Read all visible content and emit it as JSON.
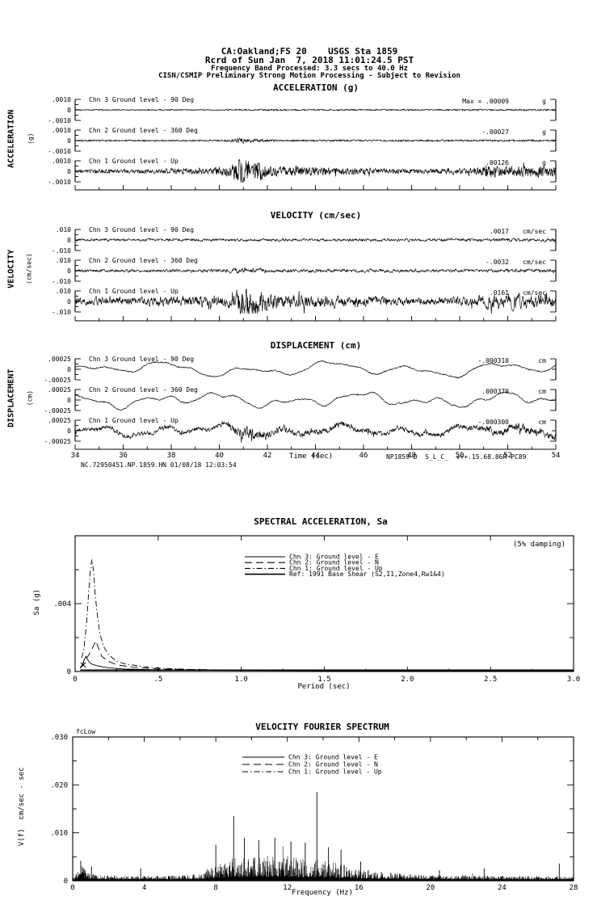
{
  "header": {
    "line1": "CA:Oakland;FS 20    USGS Sta 1859",
    "line2": "Rcrd of Sun Jan  7, 2018 11:01:24.5 PST",
    "line3": "Frequency Band Processed: 3.3 secs to 40.0 Hz",
    "line4": "CISN/CSMIP Preliminary Strong Motion Processing - Subject to Revision"
  },
  "timeseries": {
    "xlabel": "Time (sec)",
    "x_ticks": [
      "34",
      "36",
      "38",
      "40",
      "42",
      "44",
      "46",
      "48",
      "50",
      "52",
      "54"
    ],
    "footer_left": "NC.72950451.NP.1859.HN 01/08/18 12:03:54",
    "footer_right": "NP1859-D  S_L_C_  v++.15.68.86R PC89",
    "groups": [
      {
        "title": "ACCELERATION (g)",
        "side": "ACCELERATION",
        "side_unit": "(g)",
        "y_top": ".0010",
        "y_zero": "0",
        "y_bot": "-.0010",
        "unit": "g",
        "channels": [
          {
            "label": "Chn 3  Ground level - 90 Deg",
            "max_label": "Max =    .00009",
            "unit": "g"
          },
          {
            "label": "Chn 2  Ground level - 360 Deg",
            "max_label": "-.00027",
            "unit": "g"
          },
          {
            "label": "Chn 1  Ground level - Up",
            "max_label": ".00126",
            "unit": "g"
          }
        ]
      },
      {
        "title": "VELOCITY (cm/sec)",
        "side": "VELOCITY",
        "side_unit": "(cm/sec)",
        "y_top": ".010",
        "y_zero": "0",
        "y_bot": "-.010",
        "unit": "cm/sec",
        "channels": [
          {
            "label": "Chn 3  Ground level - 90 Deg",
            "max_label": ".0017",
            "unit": "cm/sec"
          },
          {
            "label": "Chn 2  Ground level - 360 Deg",
            "max_label": "-.0032",
            "unit": "cm/sec"
          },
          {
            "label": "Chn 1  Ground level - Up",
            "max_label": ".0161",
            "unit": "cm/sec"
          }
        ]
      },
      {
        "title": "DISPLACEMENT (cm)",
        "side": "DISPLACEMENT",
        "side_unit": "(cm)",
        "y_top": ".00025",
        "y_zero": "0",
        "y_bot": "-.00025",
        "unit": "cm",
        "channels": [
          {
            "label": "Chn 3  Ground level - 90 Deg",
            "max_label": "-.000310",
            "unit": "cm"
          },
          {
            "label": "Chn 2  Ground level - 360 Deg",
            "max_label": ".000370",
            "unit": "cm"
          },
          {
            "label": "Chn 1  Ground level - Up",
            "max_label": "-.000300",
            "unit": "cm"
          }
        ]
      }
    ]
  },
  "sa": {
    "title": "SPECTRAL ACCELERATION, Sa",
    "damping": "(5% damping)",
    "ylabel": "Sa (g)",
    "xlabel": "Period (sec)",
    "x_ticks": [
      "0",
      ".5",
      "1.0",
      "1.5",
      "2.0",
      "2.5",
      "3.0"
    ],
    "y_tick_labels": [
      "0",
      ".004"
    ],
    "legend": [
      {
        "label": "Chn 3: Ground level - E",
        "style": "solid"
      },
      {
        "label": "Chn 2: Ground level - N",
        "style": "dash"
      },
      {
        "label": "Chn 1: Ground level - Up",
        "style": "dashdot"
      },
      {
        "label": "Ref: 1991 Base Shear (S2,I1,Zone4,Rw1&4)",
        "style": "solid-thick"
      }
    ]
  },
  "fourier": {
    "title": "VELOCITY FOURIER SPECTRUM",
    "corner_note": "fcLow",
    "ylabel": "V(f)  cm/sec - sec",
    "xlabel": "Frequency (Hz)",
    "x_ticks": [
      "0",
      "4",
      "8",
      "12",
      "16",
      "20",
      "24",
      "28"
    ],
    "y_ticks": [
      "0",
      ".010",
      ".020",
      ".030"
    ],
    "legend": [
      {
        "label": "Chn 3: Ground level - E",
        "style": "solid"
      },
      {
        "label": "Chn 2: Ground level - N",
        "style": "dash"
      },
      {
        "label": "Chn 1: Ground level - Up",
        "style": "dashdot"
      }
    ]
  },
  "chart_data": [
    {
      "id": "acceleration",
      "type": "line",
      "title": "ACCELERATION (g)",
      "xlabel": "Time (sec)",
      "xlim": [
        34,
        54
      ],
      "units": "g",
      "ylim_per_channel": [
        -0.001,
        0.001
      ],
      "half_scale": 0.001,
      "series": [
        {
          "name": "Chn 3  Ground level - 90 Deg",
          "peak": 9e-05,
          "seed": 1,
          "smooth": 0.2,
          "envelope": [
            [
              34,
              5e-05
            ],
            [
              40,
              5e-05
            ],
            [
              41,
              7e-05
            ],
            [
              44,
              6e-05
            ],
            [
              54,
              7e-05
            ]
          ]
        },
        {
          "name": "Chn 2  Ground level - 360 Deg",
          "peak": -0.00027,
          "seed": 2,
          "smooth": 0.2,
          "envelope": [
            [
              34,
              6e-05
            ],
            [
              40.3,
              7e-05
            ],
            [
              40.8,
              0.00022
            ],
            [
              41.6,
              0.00012
            ],
            [
              43,
              7e-05
            ],
            [
              51,
              8e-05
            ],
            [
              54,
              8e-05
            ]
          ]
        },
        {
          "name": "Chn 1  Ground level - Up",
          "peak": 0.00126,
          "seed": 3,
          "smooth": 0.15,
          "envelope": [
            [
              34,
              0.00015
            ],
            [
              37,
              0.00018
            ],
            [
              38.5,
              0.0003
            ],
            [
              39.5,
              0.00025
            ],
            [
              40.4,
              0.00045
            ],
            [
              40.9,
              0.0011
            ],
            [
              41.5,
              0.0009
            ],
            [
              42.2,
              0.00045
            ],
            [
              43.5,
              0.0004
            ],
            [
              45,
              0.0003
            ],
            [
              47,
              0.00022
            ],
            [
              49,
              0.0002
            ],
            [
              50.5,
              0.00028
            ],
            [
              51.5,
              0.0005
            ],
            [
              52.5,
              0.00045
            ],
            [
              53.5,
              0.0005
            ],
            [
              54,
              0.0004
            ]
          ]
        }
      ]
    },
    {
      "id": "velocity",
      "type": "line",
      "title": "VELOCITY (cm/sec)",
      "xlabel": "Time (sec)",
      "xlim": [
        34,
        54
      ],
      "units": "cm/sec",
      "ylim_per_channel": [
        -0.01,
        0.01
      ],
      "half_scale": 0.01,
      "series": [
        {
          "name": "Chn 3  Ground level - 90 Deg",
          "peak": 0.0017,
          "seed": 4,
          "smooth": 0.5,
          "envelope": [
            [
              34,
              0.001
            ],
            [
              44,
              0.0011
            ],
            [
              54,
              0.0013
            ]
          ]
        },
        {
          "name": "Chn 2  Ground level - 360 Deg",
          "peak": -0.0032,
          "seed": 5,
          "smooth": 0.5,
          "envelope": [
            [
              34,
              0.0012
            ],
            [
              40.3,
              0.0013
            ],
            [
              40.9,
              0.0028
            ],
            [
              41.8,
              0.0016
            ],
            [
              43,
              0.0013
            ],
            [
              50,
              0.0013
            ],
            [
              54,
              0.0015
            ]
          ]
        },
        {
          "name": "Chn 1  Ground level - Up",
          "peak": 0.0161,
          "seed": 6,
          "smooth": 0.45,
          "envelope": [
            [
              34,
              0.003
            ],
            [
              37,
              0.0032
            ],
            [
              38.5,
              0.0045
            ],
            [
              40,
              0.004
            ],
            [
              40.6,
              0.006
            ],
            [
              41,
              0.014
            ],
            [
              41.6,
              0.011
            ],
            [
              42.3,
              0.006
            ],
            [
              43.5,
              0.0055
            ],
            [
              45,
              0.0045
            ],
            [
              47,
              0.0035
            ],
            [
              49,
              0.003
            ],
            [
              50.5,
              0.004
            ],
            [
              51.5,
              0.0065
            ],
            [
              52.5,
              0.0055
            ],
            [
              53.5,
              0.006
            ],
            [
              54,
              0.005
            ]
          ]
        }
      ]
    },
    {
      "id": "displacement",
      "type": "line",
      "title": "DISPLACEMENT (cm)",
      "xlabel": "Time (sec)",
      "xlim": [
        34,
        54
      ],
      "units": "cm",
      "ylim_per_channel": [
        -0.00025,
        0.00025
      ],
      "half_scale": 0.00025,
      "series": [
        {
          "name": "Chn 3  Ground level - 90 Deg",
          "peak": -0.00031,
          "seed": 11,
          "smooth": 0.35,
          "envelope": [
            [
              34,
              1.2e-05
            ],
            [
              54,
              1.2e-05
            ]
          ],
          "components": [
            [
              3.4,
              0.0001,
              0.8
            ],
            [
              1.7,
              4e-05,
              2.1
            ],
            [
              8.0,
              8e-05,
              4.0
            ],
            [
              0.9,
              1.5e-05,
              1.0
            ]
          ]
        },
        {
          "name": "Chn 2  Ground level - 360 Deg",
          "peak": 0.00037,
          "seed": 12,
          "smooth": 0.35,
          "envelope": [
            [
              34,
              1.2e-05
            ],
            [
              54,
              1.2e-05
            ]
          ],
          "components": [
            [
              2.9,
              9e-05,
              2.6
            ],
            [
              1.4,
              5e-05,
              0.4
            ],
            [
              6.6,
              8e-05,
              1.9
            ],
            [
              0.85,
              2e-05,
              3.4
            ]
          ]
        },
        {
          "name": "Chn 1  Ground level - Up",
          "peak": -0.0003,
          "seed": 13,
          "smooth": 0.4,
          "envelope": [
            [
              34,
              4e-05
            ],
            [
              37,
              4.5e-05
            ],
            [
              40.3,
              5e-05
            ],
            [
              40.9,
              0.00016
            ],
            [
              41.8,
              9e-05
            ],
            [
              43,
              6e-05
            ],
            [
              46,
              5.5e-05
            ],
            [
              49,
              5e-05
            ],
            [
              51,
              7e-05
            ],
            [
              52.5,
              8e-05
            ],
            [
              54,
              7e-05
            ]
          ],
          "components": [
            [
              2.5,
              7e-05,
              1.2
            ],
            [
              1.2,
              4e-05,
              4.4
            ],
            [
              5.8,
              6e-05,
              2.8
            ]
          ]
        }
      ]
    },
    {
      "id": "spectral_acceleration",
      "type": "line",
      "title": "SPECTRAL ACCELERATION, Sa",
      "xlabel": "Period (sec)",
      "ylabel": "Sa (g)",
      "xlim": [
        0,
        3
      ],
      "ylim": [
        0,
        0.008
      ],
      "damping": "5%",
      "legend_position": "top-center",
      "series": [
        {
          "name": "Chn 3: Ground level - E",
          "style": "solid",
          "points": [
            [
              0.03,
              0.0002
            ],
            [
              0.045,
              0.0004
            ],
            [
              0.055,
              0.0007
            ],
            [
              0.065,
              0.0009
            ],
            [
              0.075,
              0.0007
            ],
            [
              0.09,
              0.0005
            ],
            [
              0.11,
              0.0004
            ],
            [
              0.14,
              0.00032
            ],
            [
              0.2,
              0.00022
            ],
            [
              0.3,
              0.00015
            ],
            [
              0.5,
              0.0001
            ],
            [
              0.8,
              7e-05
            ],
            [
              1.5,
              5e-05
            ],
            [
              3,
              4e-05
            ]
          ]
        },
        {
          "name": "Chn 2: Ground level - N",
          "style": "dash",
          "points": [
            [
              0.03,
              0.0002
            ],
            [
              0.05,
              0.0005
            ],
            [
              0.07,
              0.0008
            ],
            [
              0.09,
              0.0011
            ],
            [
              0.11,
              0.0015
            ],
            [
              0.125,
              0.0018
            ],
            [
              0.14,
              0.0014
            ],
            [
              0.16,
              0.0009
            ],
            [
              0.2,
              0.0006
            ],
            [
              0.25,
              0.0004
            ],
            [
              0.35,
              0.00025
            ],
            [
              0.5,
              0.00015
            ],
            [
              0.8,
              0.0001
            ],
            [
              1.5,
              6e-05
            ],
            [
              3,
              4e-05
            ]
          ]
        },
        {
          "name": "Chn 1: Ground level - Up",
          "style": "dashdot",
          "points": [
            [
              0.04,
              0.0008
            ],
            [
              0.055,
              0.0015
            ],
            [
              0.07,
              0.003
            ],
            [
              0.08,
              0.0045
            ],
            [
              0.09,
              0.0058
            ],
            [
              0.1,
              0.0066
            ],
            [
              0.11,
              0.006
            ],
            [
              0.12,
              0.0046
            ],
            [
              0.135,
              0.0032
            ],
            [
              0.15,
              0.0022
            ],
            [
              0.17,
              0.0015
            ],
            [
              0.2,
              0.001
            ],
            [
              0.25,
              0.0006
            ],
            [
              0.3,
              0.00045
            ],
            [
              0.4,
              0.0003
            ],
            [
              0.5,
              0.0002
            ],
            [
              0.7,
              0.00012
            ],
            [
              1,
              8e-05
            ],
            [
              2,
              5e-05
            ],
            [
              3,
              4e-05
            ]
          ]
        },
        {
          "name": "Ref: 1991 Base Shear (S2,I1,Zone4,Rw1&4)",
          "style": "solid-thick",
          "points": [
            [
              0.03,
              8e-05
            ],
            [
              3,
              8e-05
            ]
          ]
        }
      ]
    },
    {
      "id": "velocity_fourier_spectrum",
      "type": "line",
      "title": "VELOCITY FOURIER SPECTRUM",
      "xlabel": "Frequency (Hz)",
      "ylabel": "V(f) cm/sec - sec",
      "xlim": [
        0,
        28
      ],
      "ylim": [
        0,
        0.03
      ],
      "seed": 9,
      "envelope": [
        [
          0,
          0.0006
        ],
        [
          0.25,
          0.0018
        ],
        [
          0.45,
          0.0035
        ],
        [
          0.7,
          0.0022
        ],
        [
          1.0,
          0.0015
        ],
        [
          1.5,
          0.001
        ],
        [
          2.5,
          0.0008
        ],
        [
          4,
          0.0008
        ],
        [
          6,
          0.0009
        ],
        [
          7,
          0.0012
        ],
        [
          7.8,
          0.003
        ],
        [
          8.5,
          0.0042
        ],
        [
          9.5,
          0.0048
        ],
        [
          11,
          0.005
        ],
        [
          12,
          0.0048
        ],
        [
          13,
          0.0045
        ],
        [
          14,
          0.0042
        ],
        [
          15,
          0.0035
        ],
        [
          16,
          0.0025
        ],
        [
          17,
          0.0018
        ],
        [
          18,
          0.0014
        ],
        [
          19,
          0.0012
        ],
        [
          20,
          0.001
        ],
        [
          22,
          0.0009
        ],
        [
          24,
          0.0008
        ],
        [
          26,
          0.0008
        ],
        [
          28,
          0.0007
        ]
      ],
      "peaks": [
        [
          0.45,
          0.0042
        ],
        [
          1.05,
          0.003
        ],
        [
          3.8,
          0.0026
        ],
        [
          8.0,
          0.0075
        ],
        [
          9.0,
          0.0135
        ],
        [
          9.6,
          0.009
        ],
        [
          10.4,
          0.0085
        ],
        [
          11.3,
          0.009
        ],
        [
          12.2,
          0.0082
        ],
        [
          13.0,
          0.008
        ],
        [
          13.65,
          0.0185
        ],
        [
          14.3,
          0.007
        ],
        [
          15.0,
          0.0065
        ],
        [
          16.1,
          0.004
        ],
        [
          20.5,
          0.0022
        ],
        [
          23.0,
          0.0026
        ],
        [
          27.2,
          0.0036
        ]
      ]
    }
  ]
}
